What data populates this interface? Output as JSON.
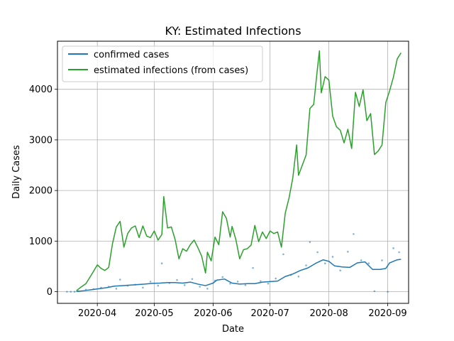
{
  "chart_data": {
    "type": "line",
    "title": "KY: Estimated Infections",
    "xlabel": "Date",
    "ylabel": "Daily Cases",
    "xlim": [
      "2020-03-11",
      "2020-09-12"
    ],
    "ylim": [
      -230,
      4950
    ],
    "grid": true,
    "legend_position": "top-left",
    "x_ticks": [
      {
        "date": "2020-04-01",
        "label": "2020-04"
      },
      {
        "date": "2020-05-01",
        "label": "2020-05"
      },
      {
        "date": "2020-06-01",
        "label": "2020-06"
      },
      {
        "date": "2020-07-01",
        "label": "2020-07"
      },
      {
        "date": "2020-08-01",
        "label": "2020-08"
      },
      {
        "date": "2020-09-01",
        "label": "2020-09"
      }
    ],
    "y_ticks": [
      0,
      1000,
      2000,
      3000,
      4000
    ],
    "series": [
      {
        "name": "confirmed cases",
        "style": "line",
        "color": "#1f77b4",
        "points": [
          [
            "2020-03-21",
            5
          ],
          [
            "2020-03-25",
            20
          ],
          [
            "2020-03-29",
            40
          ],
          [
            "2020-04-02",
            60
          ],
          [
            "2020-04-06",
            80
          ],
          [
            "2020-04-10",
            110
          ],
          [
            "2020-04-14",
            120
          ],
          [
            "2020-04-18",
            130
          ],
          [
            "2020-04-22",
            140
          ],
          [
            "2020-04-26",
            150
          ],
          [
            "2020-04-30",
            165
          ],
          [
            "2020-05-04",
            170
          ],
          [
            "2020-05-08",
            180
          ],
          [
            "2020-05-12",
            180
          ],
          [
            "2020-05-16",
            170
          ],
          [
            "2020-05-20",
            190
          ],
          [
            "2020-05-24",
            150
          ],
          [
            "2020-05-28",
            120
          ],
          [
            "2020-06-01",
            170
          ],
          [
            "2020-06-03",
            230
          ],
          [
            "2020-06-07",
            250
          ],
          [
            "2020-06-11",
            170
          ],
          [
            "2020-06-15",
            150
          ],
          [
            "2020-06-19",
            160
          ],
          [
            "2020-06-23",
            160
          ],
          [
            "2020-06-27",
            190
          ],
          [
            "2020-07-01",
            200
          ],
          [
            "2020-07-05",
            210
          ],
          [
            "2020-07-09",
            300
          ],
          [
            "2020-07-13",
            350
          ],
          [
            "2020-07-17",
            420
          ],
          [
            "2020-07-21",
            470
          ],
          [
            "2020-07-25",
            560
          ],
          [
            "2020-07-29",
            630
          ],
          [
            "2020-08-01",
            600
          ],
          [
            "2020-08-04",
            510
          ],
          [
            "2020-08-08",
            490
          ],
          [
            "2020-08-12",
            480
          ],
          [
            "2020-08-16",
            570
          ],
          [
            "2020-08-20",
            590
          ],
          [
            "2020-08-24",
            440
          ],
          [
            "2020-08-28",
            440
          ],
          [
            "2020-08-31",
            460
          ],
          [
            "2020-09-02",
            570
          ],
          [
            "2020-09-06",
            630
          ],
          [
            "2020-09-08",
            640
          ]
        ]
      },
      {
        "name": "estimated infections (from cases)",
        "style": "line",
        "color": "#2ca02c",
        "points": [
          [
            "2020-03-21",
            20
          ],
          [
            "2020-03-23",
            80
          ],
          [
            "2020-03-26",
            160
          ],
          [
            "2020-03-29",
            340
          ],
          [
            "2020-04-01",
            530
          ],
          [
            "2020-04-03",
            460
          ],
          [
            "2020-04-05",
            420
          ],
          [
            "2020-04-07",
            480
          ],
          [
            "2020-04-09",
            950
          ],
          [
            "2020-04-11",
            1280
          ],
          [
            "2020-04-13",
            1390
          ],
          [
            "2020-04-15",
            880
          ],
          [
            "2020-04-17",
            1150
          ],
          [
            "2020-04-19",
            1260
          ],
          [
            "2020-04-21",
            1300
          ],
          [
            "2020-04-23",
            1070
          ],
          [
            "2020-04-25",
            1300
          ],
          [
            "2020-04-27",
            1100
          ],
          [
            "2020-04-29",
            1070
          ],
          [
            "2020-05-01",
            1200
          ],
          [
            "2020-05-03",
            1020
          ],
          [
            "2020-05-05",
            1130
          ],
          [
            "2020-05-06",
            1880
          ],
          [
            "2020-05-08",
            1260
          ],
          [
            "2020-05-10",
            1280
          ],
          [
            "2020-05-12",
            1030
          ],
          [
            "2020-05-14",
            650
          ],
          [
            "2020-05-16",
            850
          ],
          [
            "2020-05-18",
            800
          ],
          [
            "2020-05-20",
            930
          ],
          [
            "2020-05-22",
            1020
          ],
          [
            "2020-05-24",
            870
          ],
          [
            "2020-05-26",
            700
          ],
          [
            "2020-05-28",
            370
          ],
          [
            "2020-05-29",
            780
          ],
          [
            "2020-05-31",
            610
          ],
          [
            "2020-06-02",
            1080
          ],
          [
            "2020-06-04",
            930
          ],
          [
            "2020-06-06",
            1580
          ],
          [
            "2020-06-08",
            1450
          ],
          [
            "2020-06-10",
            1080
          ],
          [
            "2020-06-11",
            1290
          ],
          [
            "2020-06-13",
            1030
          ],
          [
            "2020-06-15",
            650
          ],
          [
            "2020-06-17",
            830
          ],
          [
            "2020-06-19",
            850
          ],
          [
            "2020-06-21",
            920
          ],
          [
            "2020-06-23",
            1310
          ],
          [
            "2020-06-25",
            990
          ],
          [
            "2020-06-27",
            1180
          ],
          [
            "2020-06-29",
            1050
          ],
          [
            "2020-07-01",
            1200
          ],
          [
            "2020-07-03",
            1150
          ],
          [
            "2020-07-05",
            1180
          ],
          [
            "2020-07-07",
            880
          ],
          [
            "2020-07-09",
            1550
          ],
          [
            "2020-07-11",
            1850
          ],
          [
            "2020-07-13",
            2250
          ],
          [
            "2020-07-15",
            2900
          ],
          [
            "2020-07-16",
            2300
          ],
          [
            "2020-07-18",
            2500
          ],
          [
            "2020-07-20",
            2700
          ],
          [
            "2020-07-22",
            3620
          ],
          [
            "2020-07-24",
            3700
          ],
          [
            "2020-07-26",
            4420
          ],
          [
            "2020-07-27",
            4760
          ],
          [
            "2020-07-28",
            3930
          ],
          [
            "2020-07-30",
            4250
          ],
          [
            "2020-08-01",
            4180
          ],
          [
            "2020-08-03",
            3470
          ],
          [
            "2020-08-05",
            3260
          ],
          [
            "2020-08-07",
            3190
          ],
          [
            "2020-08-09",
            2940
          ],
          [
            "2020-08-11",
            3210
          ],
          [
            "2020-08-13",
            2830
          ],
          [
            "2020-08-15",
            3940
          ],
          [
            "2020-08-17",
            3660
          ],
          [
            "2020-08-19",
            3990
          ],
          [
            "2020-08-21",
            3380
          ],
          [
            "2020-08-23",
            3520
          ],
          [
            "2020-08-25",
            2710
          ],
          [
            "2020-08-27",
            2780
          ],
          [
            "2020-08-29",
            2900
          ],
          [
            "2020-08-31",
            3740
          ],
          [
            "2020-09-02",
            3970
          ],
          [
            "2020-09-04",
            4240
          ],
          [
            "2020-09-06",
            4600
          ],
          [
            "2020-09-08",
            4720
          ]
        ]
      },
      {
        "style": "scatter",
        "color": "#1f77b4",
        "points": [
          [
            "2020-03-16",
            0
          ],
          [
            "2020-03-18",
            0
          ],
          [
            "2020-03-20",
            0
          ],
          [
            "2020-03-22",
            10
          ],
          [
            "2020-03-26",
            40
          ],
          [
            "2020-03-30",
            50
          ],
          [
            "2020-04-03",
            80
          ],
          [
            "2020-04-07",
            100
          ],
          [
            "2020-04-11",
            60
          ],
          [
            "2020-04-13",
            240
          ],
          [
            "2020-04-17",
            120
          ],
          [
            "2020-04-21",
            140
          ],
          [
            "2020-04-25",
            80
          ],
          [
            "2020-04-29",
            200
          ],
          [
            "2020-05-03",
            120
          ],
          [
            "2020-05-05",
            560
          ],
          [
            "2020-05-09",
            170
          ],
          [
            "2020-05-13",
            230
          ],
          [
            "2020-05-17",
            130
          ],
          [
            "2020-05-21",
            250
          ],
          [
            "2020-05-25",
            100
          ],
          [
            "2020-05-29",
            60
          ],
          [
            "2020-06-02",
            220
          ],
          [
            "2020-06-06",
            290
          ],
          [
            "2020-06-10",
            160
          ],
          [
            "2020-06-14",
            200
          ],
          [
            "2020-06-18",
            130
          ],
          [
            "2020-06-22",
            470
          ],
          [
            "2020-06-26",
            210
          ],
          [
            "2020-06-30",
            160
          ],
          [
            "2020-07-04",
            260
          ],
          [
            "2020-07-08",
            740
          ],
          [
            "2020-07-12",
            330
          ],
          [
            "2020-07-16",
            300
          ],
          [
            "2020-07-20",
            520
          ],
          [
            "2020-07-22",
            980
          ],
          [
            "2020-07-26",
            780
          ],
          [
            "2020-07-30",
            560
          ],
          [
            "2020-08-03",
            690
          ],
          [
            "2020-08-07",
            420
          ],
          [
            "2020-08-11",
            790
          ],
          [
            "2020-08-14",
            1140
          ],
          [
            "2020-08-18",
            620
          ],
          [
            "2020-08-22",
            560
          ],
          [
            "2020-08-25",
            10
          ],
          [
            "2020-08-29",
            620
          ],
          [
            "2020-09-01",
            0
          ],
          [
            "2020-09-04",
            860
          ],
          [
            "2020-09-07",
            780
          ]
        ]
      }
    ]
  }
}
